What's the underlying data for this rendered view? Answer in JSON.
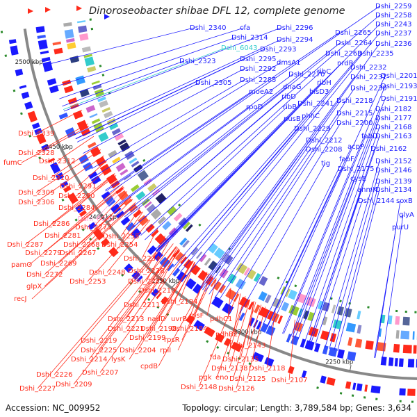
{
  "title": "Dinoroseobacter shibae DFL 12, complete genome",
  "footer": {
    "accession": "Accession: NC_009952",
    "info": "Topology: circular; Length: 3,789,584 bp; Genes: 3,634"
  },
  "colors": {
    "forward": "#1a1aff",
    "reverse": "#ff2a1a",
    "highlight": "#33cccc",
    "pink": "#ff99cc",
    "backbone": "#888888",
    "tick": "#2a8a2a"
  },
  "kbp_labels": [
    "2500 kbp",
    "2450 kbp",
    "2400 kbp",
    "2350 kbp",
    "2300 kbp",
    "2250 kbp"
  ],
  "blue_labels": [
    [
      "Dshi_2340",
      273,
      43
    ],
    [
      "cfa",
      345,
      43
    ],
    [
      "Dshi_2296",
      398,
      43
    ],
    [
      "Dshi_2314",
      333,
      57
    ],
    [
      "Dshi_2294",
      398,
      60
    ],
    [
      "Dshi_6043",
      318,
      72
    ],
    [
      "Dshi_2293",
      374,
      74
    ],
    [
      "Dshi_2323",
      258,
      91
    ],
    [
      "Dshi_2295",
      345,
      88
    ],
    [
      "dmsA1",
      398,
      93
    ],
    [
      "Dshi_2292",
      345,
      102
    ],
    [
      "Dshi_2270",
      415,
      110
    ],
    [
      "Dshi_2305",
      281,
      122
    ],
    [
      "Dshi_2285",
      345,
      118
    ],
    [
      "moeA2",
      358,
      135
    ],
    [
      "dnaG",
      407,
      128
    ],
    [
      "ribD",
      405,
      142
    ],
    [
      "hisD3",
      445,
      135
    ],
    [
      "ribB",
      407,
      157
    ],
    [
      "Dshi_2241",
      428,
      152
    ],
    [
      "rpoD",
      354,
      157
    ],
    [
      "phhC",
      434,
      170
    ],
    [
      "nusB",
      408,
      174
    ],
    [
      "Dshi_2229",
      423,
      188
    ],
    [
      "Dshi_2212",
      440,
      205
    ],
    [
      "Dshi_2208",
      440,
      218
    ],
    [
      "tig",
      462,
      238
    ],
    [
      "Dshi_2259",
      540,
      12
    ],
    [
      "Dshi_2258",
      540,
      25
    ],
    [
      "Dshi_2243",
      540,
      38
    ],
    [
      "Dshi_2265",
      482,
      50
    ],
    [
      "Dshi_2237",
      540,
      51
    ],
    [
      "Dshi_2264",
      483,
      65
    ],
    [
      "Dshi_2236",
      540,
      66
    ],
    [
      "Dshi_2263",
      468,
      80
    ],
    [
      "Dshi_2235",
      514,
      80
    ],
    [
      "nrdR",
      485,
      94
    ],
    [
      "Dshi_2232",
      504,
      100
    ],
    [
      "ribC",
      456,
      106
    ],
    [
      "ribH",
      456,
      122
    ],
    [
      "Dshi_2231",
      504,
      114
    ],
    [
      "Dshi_2201",
      548,
      112
    ],
    [
      "Dshi_2230",
      504,
      130
    ],
    [
      "Dshi_2193",
      548,
      127
    ],
    [
      "Dshi_2218",
      484,
      148
    ],
    [
      "Dshi_2191",
      548,
      145
    ],
    [
      "Dshi_2215",
      484,
      166
    ],
    [
      "Dshi_2182",
      540,
      160
    ],
    [
      "Dshi_2200",
      484,
      180
    ],
    [
      "Dshi_2177",
      540,
      173
    ],
    [
      "Dshi_2168",
      540,
      186
    ],
    [
      "fabD",
      520,
      199
    ],
    [
      "Dshi_2163",
      540,
      199
    ],
    [
      "acpP",
      500,
      214
    ],
    [
      "Dshi_2162",
      533,
      217
    ],
    [
      "fabF",
      488,
      232
    ],
    [
      "Dshi_2152",
      540,
      235
    ],
    [
      "Dshi_2175",
      486,
      246
    ],
    [
      "Dshi_2146",
      540,
      248
    ],
    [
      "cysE",
      504,
      260
    ],
    [
      "Dshi_2139",
      540,
      264
    ],
    [
      "anmK",
      514,
      276
    ],
    [
      "Dshi_2134",
      540,
      276
    ],
    [
      "Dshi_2144",
      515,
      292
    ],
    [
      "soxB",
      570,
      292
    ],
    [
      "glyA",
      574,
      312
    ],
    [
      "purU",
      564,
      330
    ]
  ],
  "red_labels": [
    [
      "Dshi_2339",
      26,
      195
    ],
    [
      "Dshi_2328",
      26,
      223
    ],
    [
      "fumC",
      5,
      237
    ],
    [
      "Dshi_2312",
      56,
      235
    ],
    [
      "Dshi_2310",
      47,
      259
    ],
    [
      "Dshi_2291",
      86,
      271
    ],
    [
      "Dshi_2309",
      26,
      280
    ],
    [
      "Dshi_2290",
      84,
      285
    ],
    [
      "Dshi_2306",
      26,
      294
    ],
    [
      "Dshi_2284",
      84,
      302
    ],
    [
      "Dshi_6041",
      112,
      318
    ],
    [
      "Dshi_2286",
      48,
      325
    ],
    [
      "Dshi_2273",
      108,
      330
    ],
    [
      "Dshi_2281",
      64,
      342
    ],
    [
      "Dshi_2255",
      148,
      343
    ],
    [
      "Dshi_2287",
      10,
      355
    ],
    [
      "Dshi_2268",
      91,
      355
    ],
    [
      "Dshi_2254",
      146,
      355
    ],
    [
      "Dshi_2279",
      36,
      367
    ],
    [
      "Dshi_2267",
      86,
      367
    ],
    [
      "Dshi_2234",
      178,
      375
    ],
    [
      "pamO",
      16,
      384
    ],
    [
      "Dshi_2269",
      58,
      382
    ],
    [
      "Dshi_2248",
      128,
      395
    ],
    [
      "Dshi_2228",
      184,
      393
    ],
    [
      "Dshi_2272",
      38,
      398
    ],
    [
      "Dshi_2253",
      100,
      408
    ],
    [
      "Dshi_2223",
      184,
      408
    ],
    [
      "glpX",
      38,
      415
    ],
    [
      "Dshi_2210",
      200,
      421
    ],
    [
      "recJ",
      20,
      433
    ],
    [
      "Dshi_2194",
      232,
      437
    ],
    [
      "Dshi_2211",
      178,
      442
    ],
    [
      "uvrB",
      246,
      462
    ],
    [
      "rpsF",
      272,
      457
    ],
    [
      "pdhC1",
      302,
      462
    ],
    [
      "Dshi_2213",
      155,
      462
    ],
    [
      "nadD",
      212,
      462
    ],
    [
      "Dshi_2221",
      155,
      476
    ],
    [
      "Dshi_2198",
      202,
      476
    ],
    [
      "Dshi_2184",
      246,
      476
    ],
    [
      "pdhB2",
      310,
      484
    ],
    [
      "Dshi_2199",
      186,
      489
    ],
    [
      "Dshi_2219",
      116,
      493
    ],
    [
      "rpsR",
      236,
      492
    ],
    [
      "Dshi_2143",
      330,
      500
    ],
    [
      "Dshi_2225",
      116,
      507
    ],
    [
      "Dshi_2204",
      172,
      507
    ],
    [
      "rplI",
      230,
      507
    ],
    [
      "fda",
      302,
      517
    ],
    [
      "Dshi_2135",
      320,
      520
    ],
    [
      "Dshi_2214",
      102,
      520
    ],
    [
      "lysK",
      160,
      520
    ],
    [
      "cpdB",
      202,
      530
    ],
    [
      "Dshi_2138",
      304,
      533
    ],
    [
      "Dshi_2118",
      358,
      533
    ],
    [
      "Dshi_2226",
      52,
      542
    ],
    [
      "Dshi_2207",
      118,
      539
    ],
    [
      "pgk",
      286,
      546
    ],
    [
      "eno",
      310,
      546
    ],
    [
      "Dshi_2125",
      330,
      548
    ],
    [
      "Dshi_2107",
      390,
      550
    ],
    [
      "Dshi_2209",
      80,
      556
    ],
    [
      "Dshi_2148",
      260,
      560
    ],
    [
      "Dshi_2126",
      314,
      562
    ],
    [
      "Dshi_2227",
      28,
      562
    ]
  ]
}
